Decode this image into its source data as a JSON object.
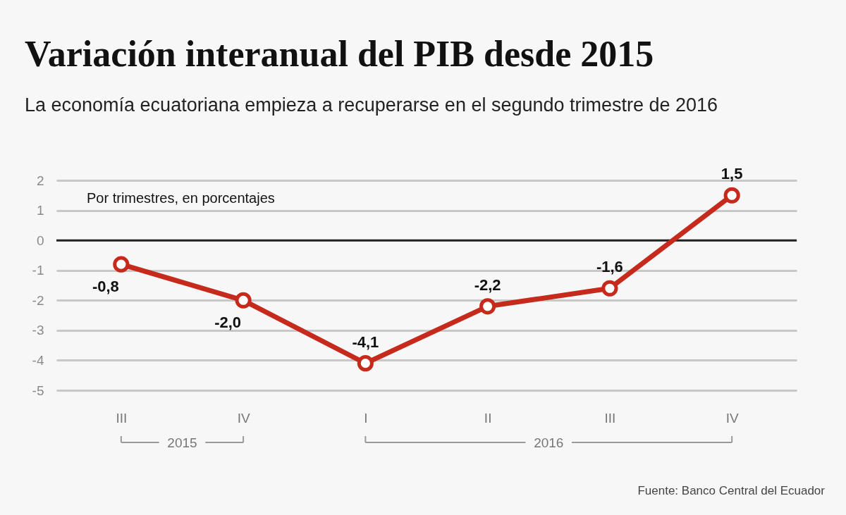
{
  "chart_data": {
    "type": "line",
    "title": "Variación interanual del PIB desde 2015",
    "subtitle": "La economía ecuatoriana empieza a recuperarse en el segundo trimestre de 2016",
    "categories": [
      "III",
      "IV",
      "I",
      "II",
      "III",
      "IV"
    ],
    "series": [
      {
        "color": "#c62a1c",
        "values": [
          -0.8,
          -2.0,
          -4.1,
          -2.2,
          -1.6,
          1.5
        ],
        "value_labels": [
          "-0,8",
          "-2,0",
          "-4,1",
          "-2,2",
          "-1,6",
          "1,5"
        ]
      }
    ],
    "ylim": [
      -5,
      2
    ],
    "yticks": [
      -5,
      -4,
      -3,
      -2,
      -1,
      0,
      1,
      2
    ],
    "grid": "y",
    "marker": "circle",
    "line_style": "solid",
    "ref_lines": [
      {
        "axis": "y",
        "value": 0,
        "color": "#222222"
      }
    ],
    "annotations": [
      "Por trimestres, en porcentajes",
      "2015",
      "2016",
      "Fuente: Banco Central del Ecuador"
    ]
  }
}
